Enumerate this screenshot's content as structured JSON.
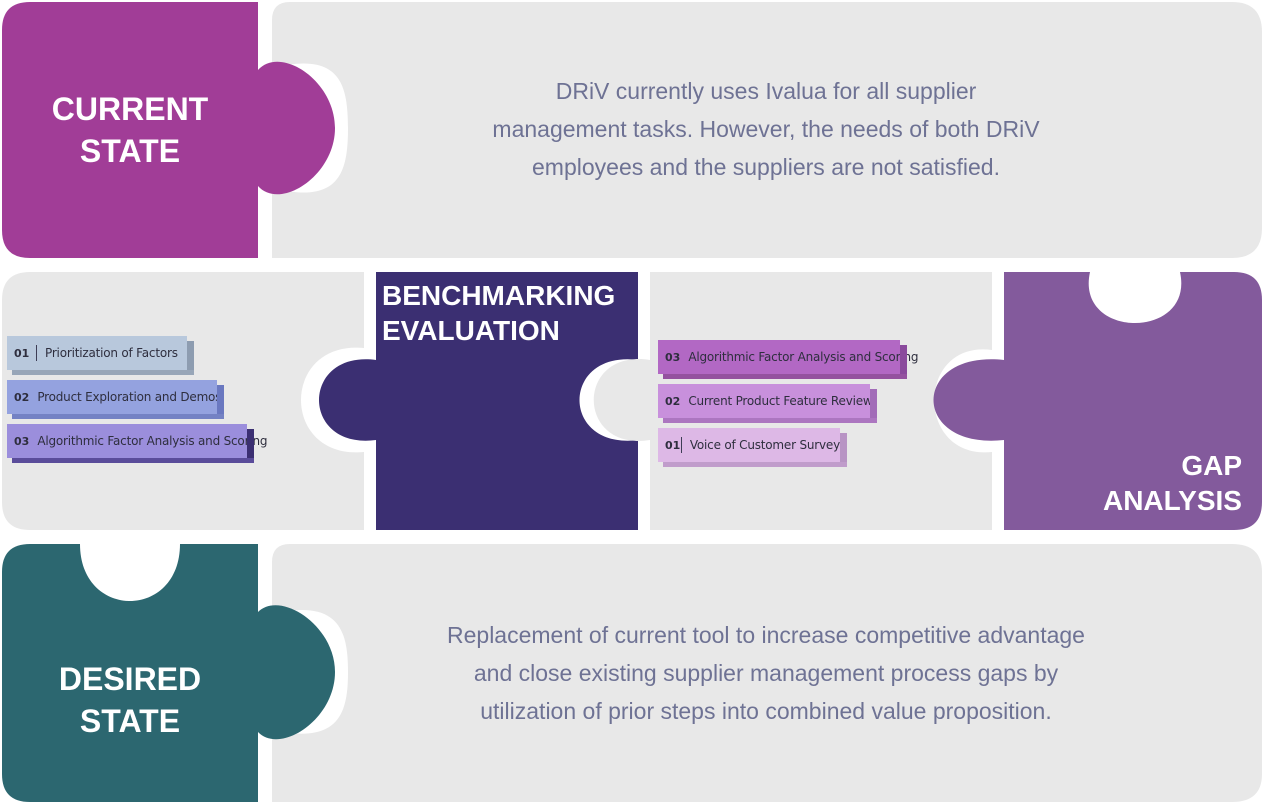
{
  "current_state": {
    "title_line1": "CURRENT",
    "title_line2": "STATE",
    "description_line1": "DRiV currently uses Ivalua for all supplier",
    "description_line2": "management tasks. However, the needs of both DRiV",
    "description_line3": "employees and the suppliers are not satisfied.",
    "color": "#a13d97"
  },
  "benchmarking": {
    "title_line1": "BENCHMARKING",
    "title_line2": "EVALUATION",
    "color": "#3b2f72",
    "steps": [
      {
        "num": "01",
        "label": "Prioritization of Factors",
        "color": "#b8c8dc"
      },
      {
        "num": "02",
        "label": "Product Exploration and Demos",
        "color": "#94a2df"
      },
      {
        "num": "03",
        "label": "Algorithmic Factor Analysis and Scoring",
        "color": "#9b8edc"
      }
    ]
  },
  "gap_analysis": {
    "title_line1": "GAP",
    "title_line2": "ANALYSIS",
    "color": "#835a9c",
    "steps": [
      {
        "num": "03",
        "label": "Algorithmic Factor Analysis and Scoring",
        "color": "#b268c4"
      },
      {
        "num": "02",
        "label": "Current Product Feature Review",
        "color": "#c890dc"
      },
      {
        "num": "01",
        "label": "Voice of Customer Survey",
        "color": "#ddb8e6"
      }
    ]
  },
  "desired_state": {
    "title_line1": "DESIRED",
    "title_line2": "STATE",
    "description_line1": "Replacement of current tool to increase competitive advantage",
    "description_line2": "and close existing supplier management process gaps by",
    "description_line3": "utilization of prior steps into combined value proposition.",
    "color": "#2c6770"
  },
  "panel_color": "#e8e8e8"
}
